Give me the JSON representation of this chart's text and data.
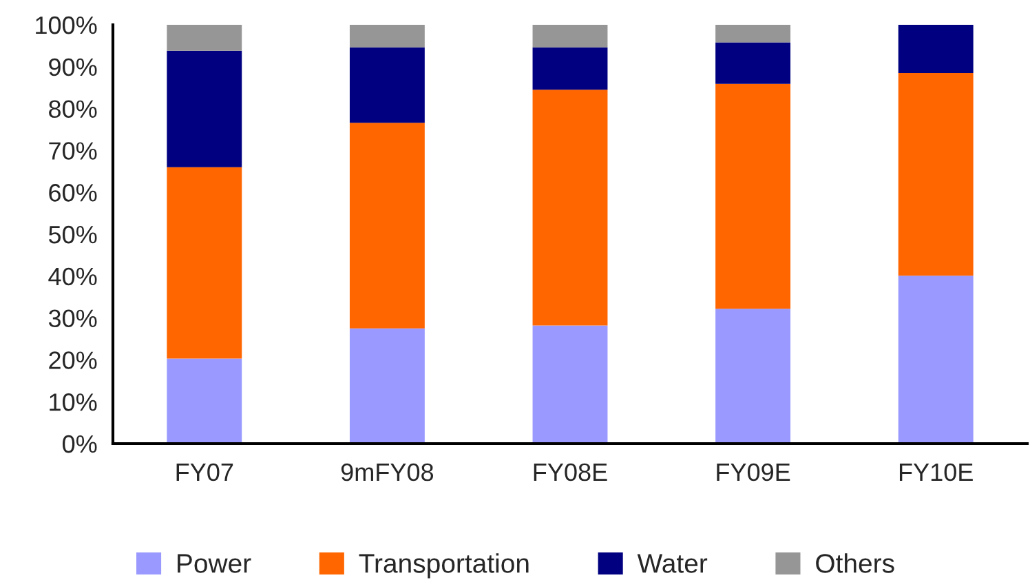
{
  "chart_data": {
    "type": "bar",
    "stacked": true,
    "categories": [
      "FY07",
      "9mFY08",
      "FY08E",
      "FY09E",
      "FY10E"
    ],
    "series": [
      {
        "name": "Power",
        "color": "#9999ff",
        "values": [
          20.3,
          27.5,
          28.2,
          32.2,
          40.1
        ]
      },
      {
        "name": "Transportation",
        "color": "#ff6600",
        "values": [
          45.7,
          49.1,
          56.3,
          53.7,
          48.4
        ]
      },
      {
        "name": "Water",
        "color": "#000080",
        "values": [
          27.8,
          18.0,
          10.1,
          9.9,
          11.5
        ]
      },
      {
        "name": "Others",
        "color": "#969696",
        "values": [
          6.2,
          5.4,
          5.4,
          4.2,
          0
        ]
      }
    ],
    "ylim": [
      0,
      100
    ],
    "yticks": [
      {
        "value": 0,
        "label": "0%"
      },
      {
        "value": 10,
        "label": "10%"
      },
      {
        "value": 20,
        "label": "20%"
      },
      {
        "value": 30,
        "label": "30%"
      },
      {
        "value": 40,
        "label": "40%"
      },
      {
        "value": 50,
        "label": "50%"
      },
      {
        "value": 60,
        "label": "60%"
      },
      {
        "value": 70,
        "label": "70%"
      },
      {
        "value": 80,
        "label": "80%"
      },
      {
        "value": 90,
        "label": "90%"
      },
      {
        "value": 100,
        "label": "100%"
      }
    ],
    "grid": false,
    "legend": "bottom"
  }
}
